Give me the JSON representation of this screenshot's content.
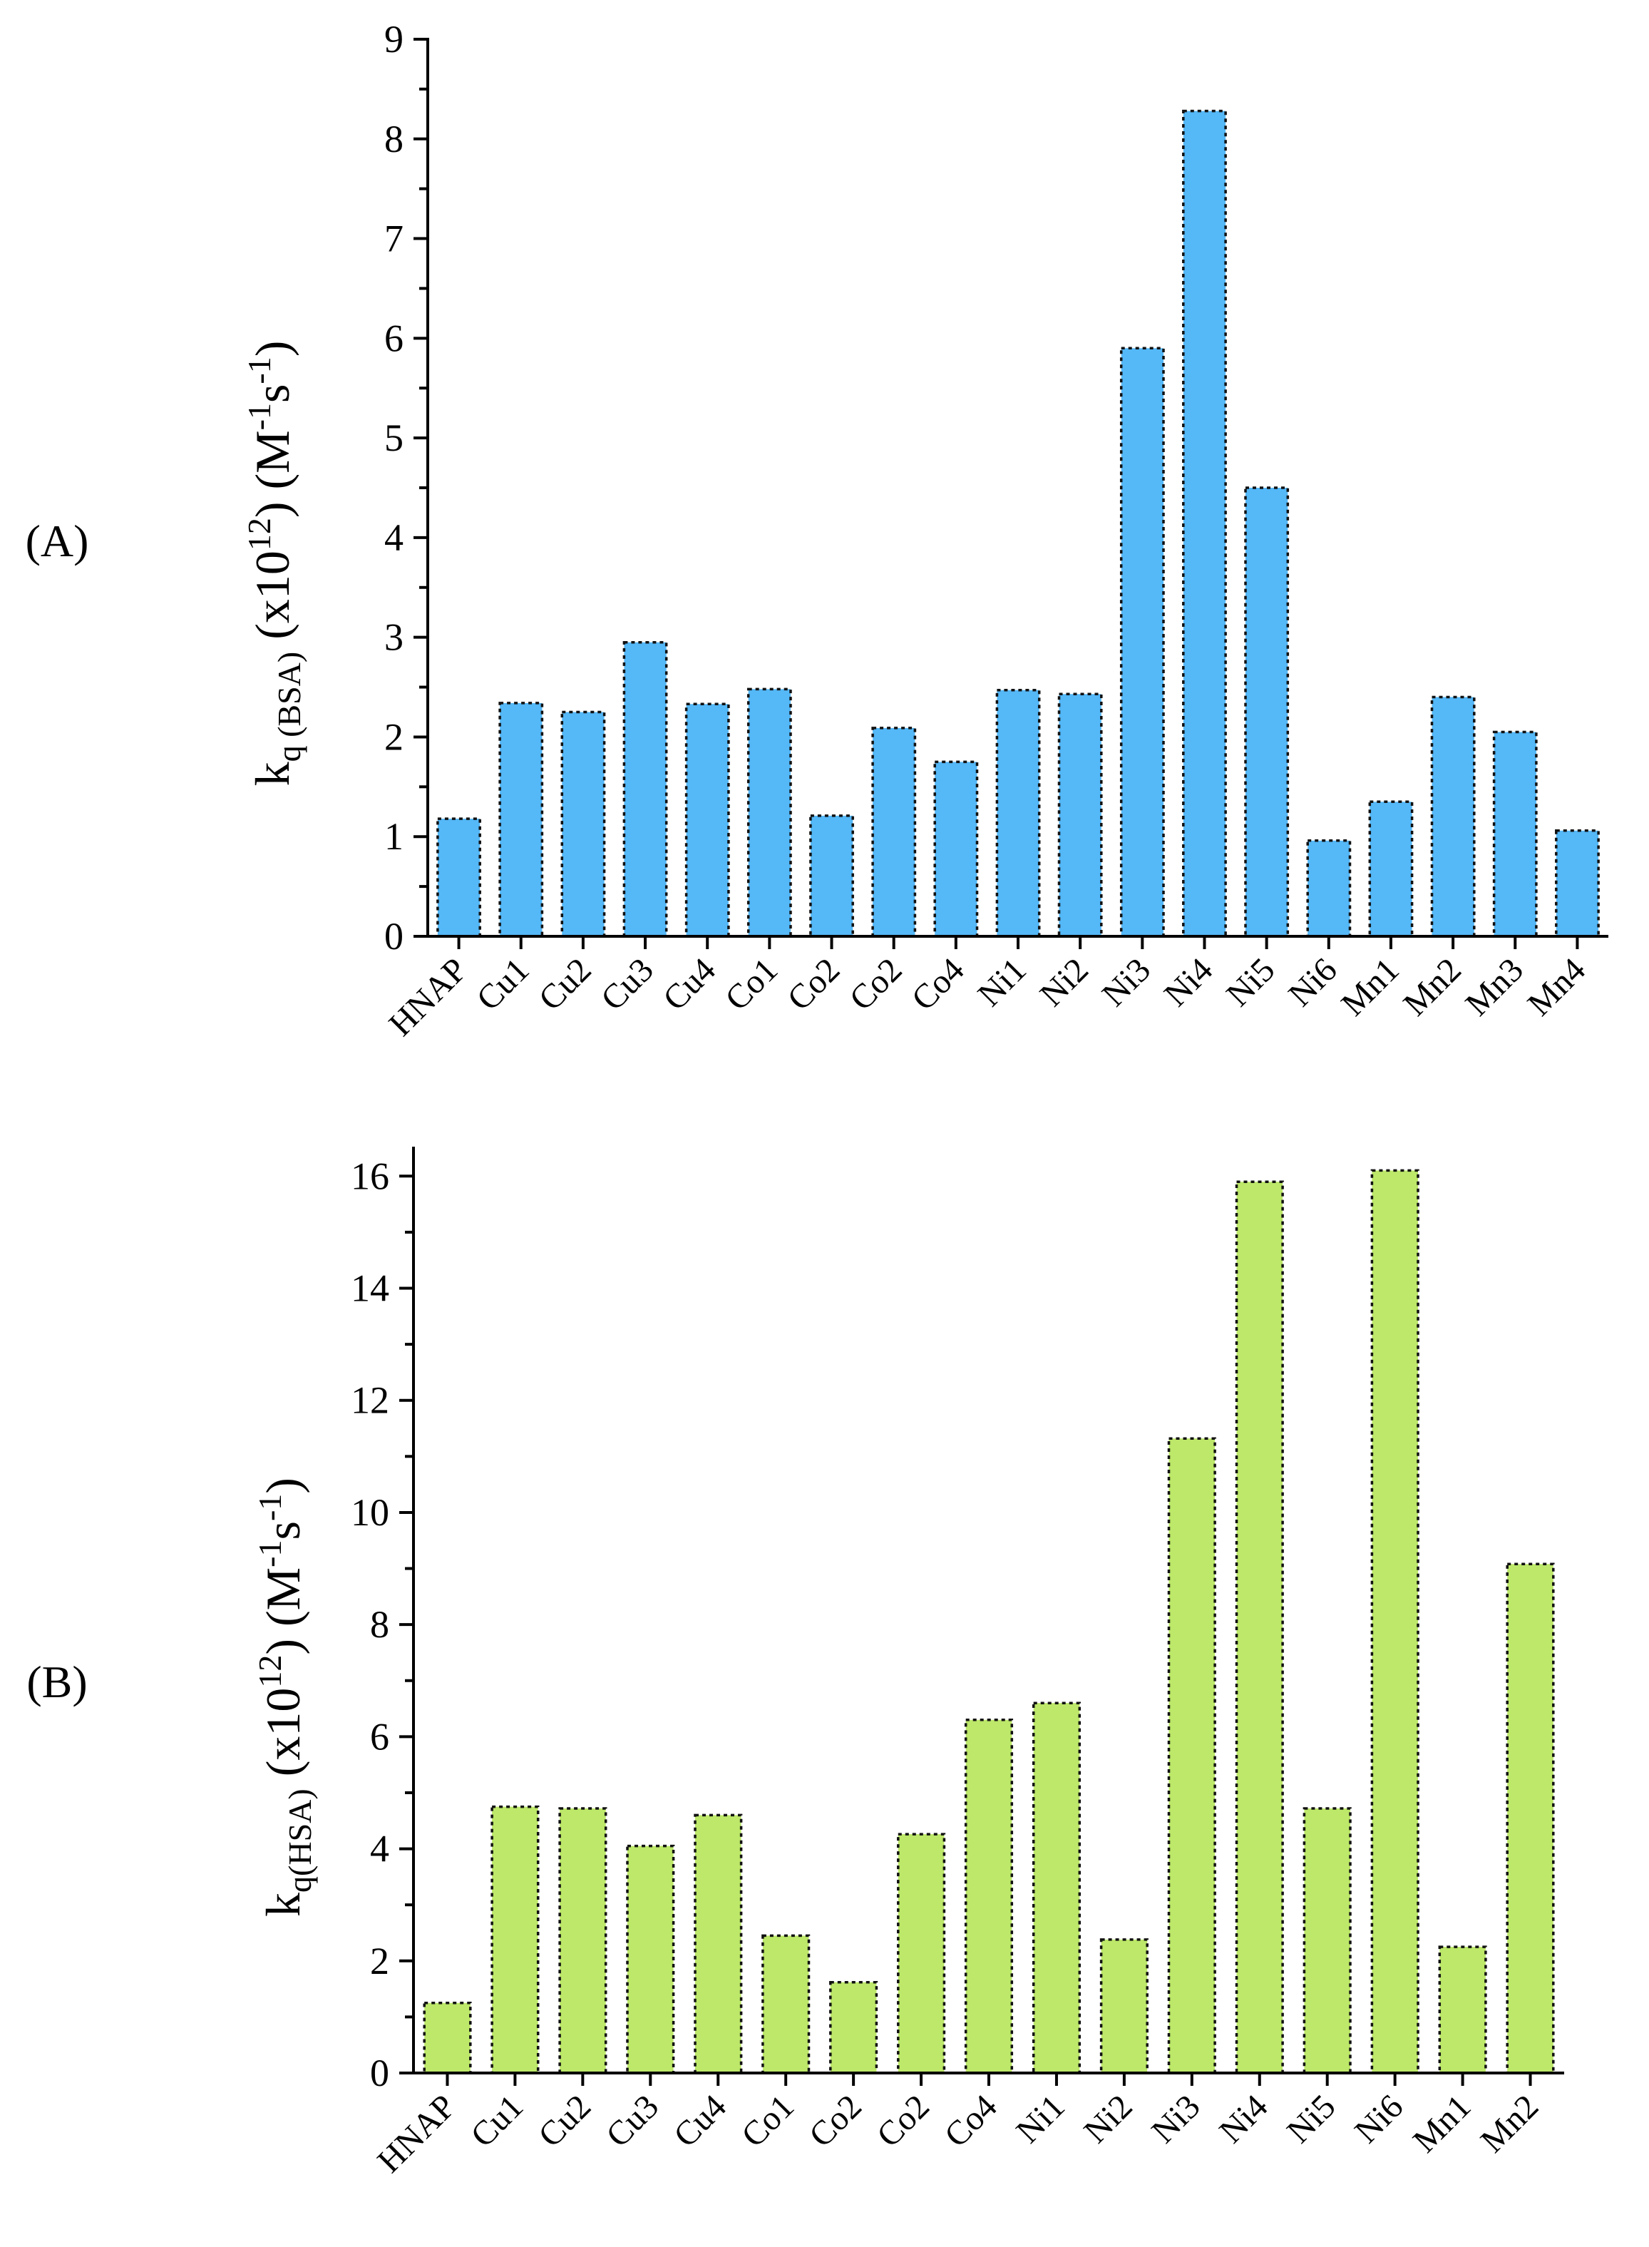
{
  "chart_data": [
    {
      "type": "bar",
      "panel_label": "(A)",
      "ylabel": {
        "k": "k",
        "sub": "q (BSA)",
        "mid": " (x10",
        "sup1": "12",
        "mid2": ") (M",
        "sup2": "-1",
        "mid3": "s",
        "sup3": "-1",
        "end": ")"
      },
      "ylim": [
        0,
        9
      ],
      "yticks": [
        0,
        1,
        2,
        3,
        4,
        5,
        6,
        7,
        8,
        9
      ],
      "categories": [
        "HNAP",
        "Cu1",
        "Cu2",
        "Cu3",
        "Cu4",
        "Co1",
        "Co2",
        "Co2",
        "Co4",
        "Ni1",
        "Ni2",
        "Ni3",
        "Ni4",
        "Ni5",
        "Ni6",
        "Mn1",
        "Mn2",
        "Mn3",
        "Mn4"
      ],
      "values": [
        1.18,
        2.34,
        2.25,
        2.95,
        2.33,
        2.48,
        1.21,
        2.09,
        1.75,
        2.47,
        2.43,
        5.9,
        8.28,
        4.5,
        0.96,
        1.35,
        2.4,
        2.05,
        1.06
      ],
      "bar_color": "#55b8f7"
    },
    {
      "type": "bar",
      "panel_label": "(B)",
      "ylabel": {
        "k": "k",
        "sub": "q(HSA)",
        "mid": " (x10",
        "sup1": "12",
        "mid2": ") (M",
        "sup2": "-1",
        "mid3": "s",
        "sup3": "-1",
        "end": ")"
      },
      "ylim": [
        0,
        16.5
      ],
      "yticks": [
        0,
        2,
        4,
        6,
        8,
        10,
        12,
        14,
        16
      ],
      "categories": [
        "HNAP",
        "Cu1",
        "Cu2",
        "Cu3",
        "Cu4",
        "Co1",
        "Co2",
        "Co2",
        "Co4",
        "Ni1",
        "Ni2",
        "Ni3",
        "Ni4",
        "Ni5",
        "Ni6",
        "Mn1",
        "Mn2"
      ],
      "values": [
        1.25,
        4.75,
        4.72,
        4.05,
        4.6,
        2.45,
        1.62,
        4.26,
        6.3,
        6.6,
        2.38,
        11.32,
        15.9,
        4.72,
        16.1,
        2.25,
        9.08
      ],
      "bar_color": "#bde86a"
    }
  ]
}
